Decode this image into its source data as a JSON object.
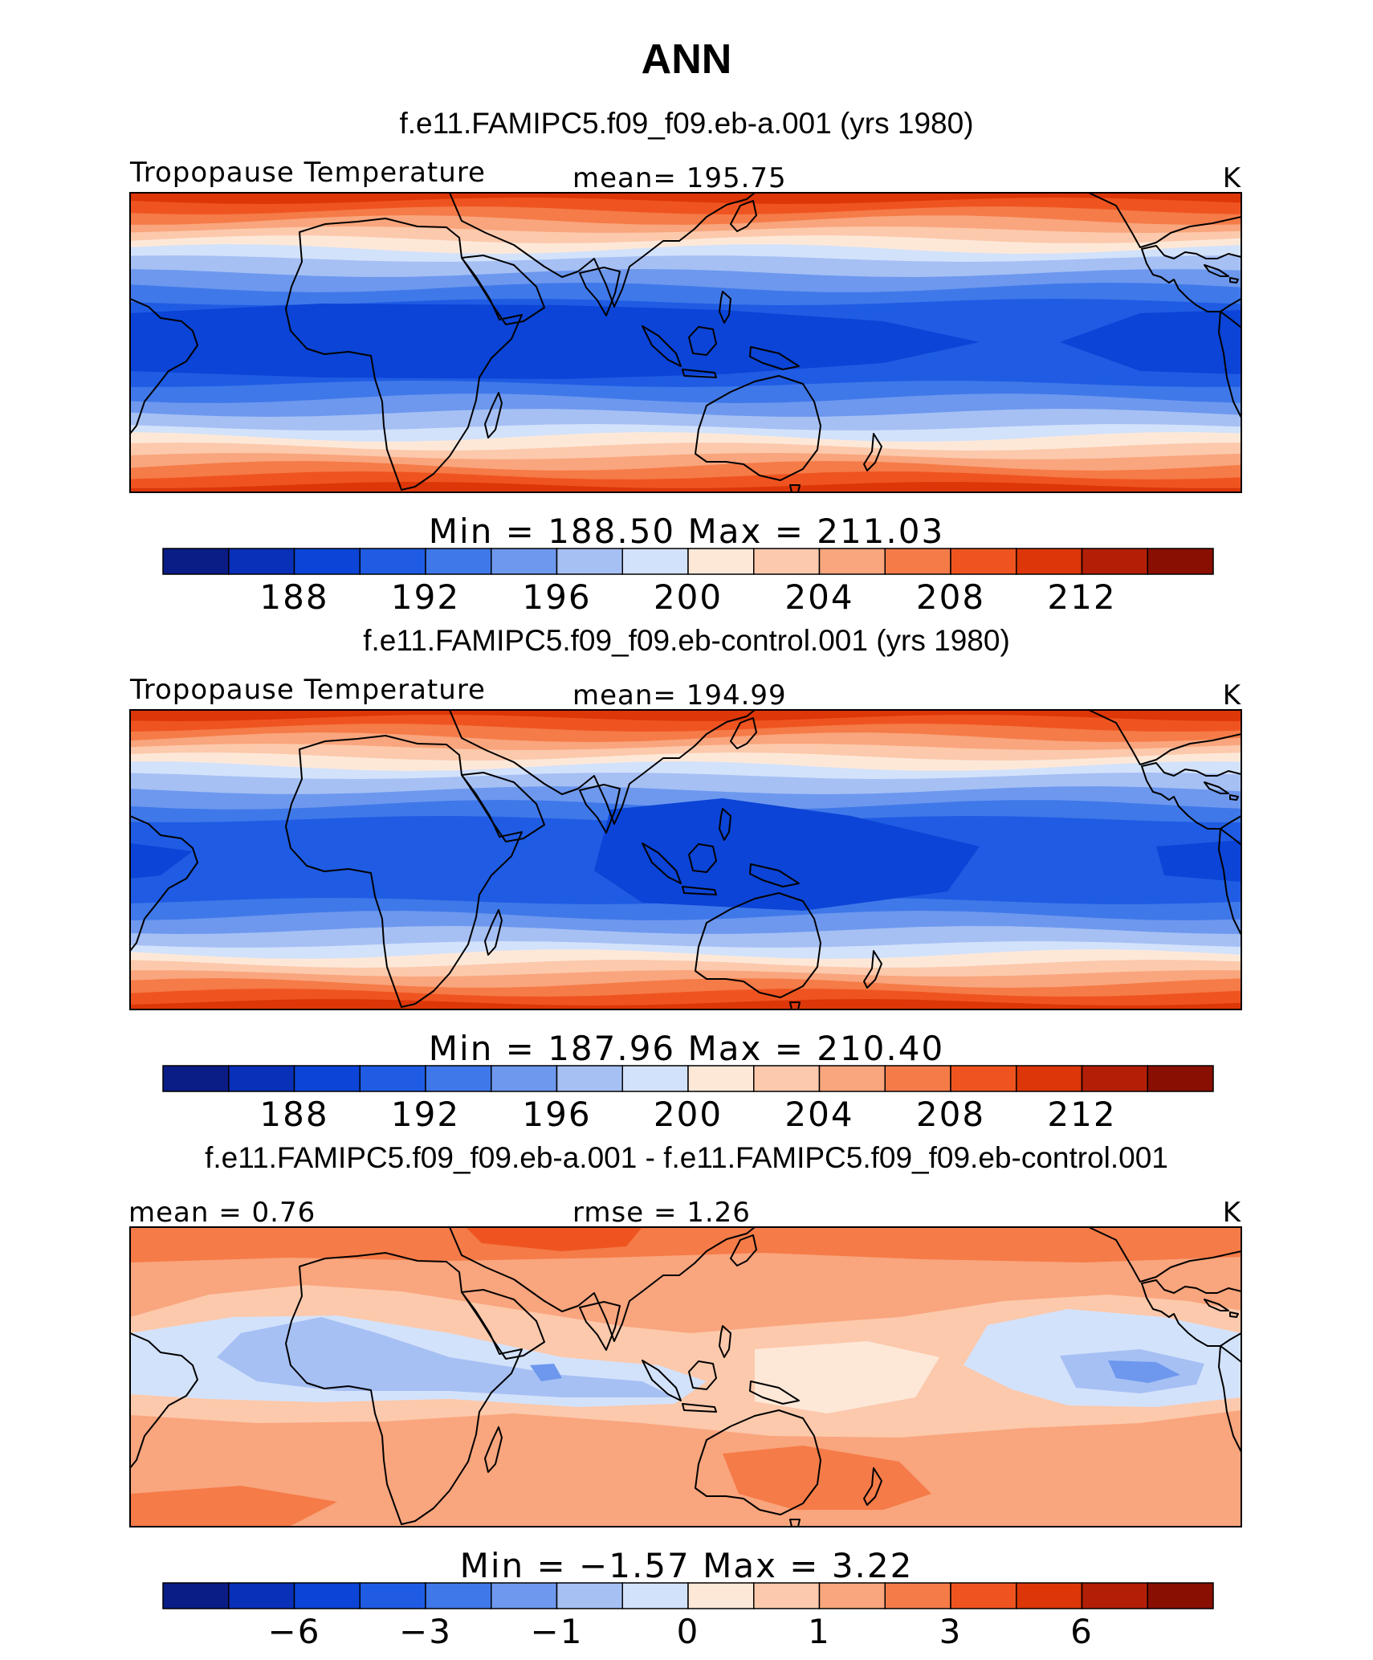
{
  "figure_title": "ANN",
  "colors": {
    "absolute_levels": [
      "#0a1d86",
      "#0930b8",
      "#0b44d6",
      "#1f5ce3",
      "#3f78e9",
      "#6d98ee",
      "#a6c0f4",
      "#d3e2fb",
      "#fde8d8",
      "#fcc9ac",
      "#f9a57d",
      "#f57b48",
      "#ef5420",
      "#dc3609",
      "#b31e06",
      "#8a0f03"
    ],
    "coastline": "#000000"
  },
  "chart_data": [
    {
      "type": "heatmap",
      "case_title": "f.e11.FAMIPC5.f09_f09.eb-a.001 (yrs 1980)",
      "left_label": "Tropopause Temperature",
      "center_label": "mean=  195.75",
      "units": "K",
      "mean": 195.75,
      "min": 188.5,
      "max": 211.03,
      "min_max_text": "Min  =  188.50  Max  =  211.03",
      "colorbar_levels": [
        186,
        188,
        190,
        192,
        194,
        196,
        198,
        200,
        202,
        204,
        206,
        208,
        210,
        212,
        214
      ],
      "colorbar_ticks": [
        "188",
        "192",
        "196",
        "200",
        "204",
        "208",
        "212"
      ]
    },
    {
      "type": "heatmap",
      "case_title": "f.e11.FAMIPC5.f09_f09.eb-control.001 (yrs 1980)",
      "left_label": "Tropopause Temperature",
      "center_label": "mean=  194.99",
      "units": "K",
      "mean": 194.99,
      "min": 187.96,
      "max": 210.4,
      "min_max_text": "Min  =  187.96  Max  =  210.40",
      "colorbar_levels": [
        186,
        188,
        190,
        192,
        194,
        196,
        198,
        200,
        202,
        204,
        206,
        208,
        210,
        212,
        214
      ],
      "colorbar_ticks": [
        "188",
        "192",
        "196",
        "200",
        "204",
        "208",
        "212"
      ]
    },
    {
      "type": "heatmap",
      "case_title": "f.e11.FAMIPC5.f09_f09.eb-a.001 - f.e11.FAMIPC5.f09_f09.eb-control.001",
      "left_label": "mean =    0.76",
      "center_label": "rmse =    1.26",
      "units": "K",
      "mean": 0.76,
      "rmse": 1.26,
      "min": -1.57,
      "max": 3.22,
      "min_max_text": "Min  =   −1.57  Max  =    3.22",
      "colorbar_levels": [
        -8,
        -6,
        -4,
        -3,
        -2,
        -1,
        -0.5,
        0,
        0.5,
        1,
        2,
        3,
        4,
        6,
        8
      ],
      "colorbar_ticks": [
        "−6",
        "−3",
        "−1",
        "0",
        "1",
        "3",
        "6"
      ]
    }
  ]
}
